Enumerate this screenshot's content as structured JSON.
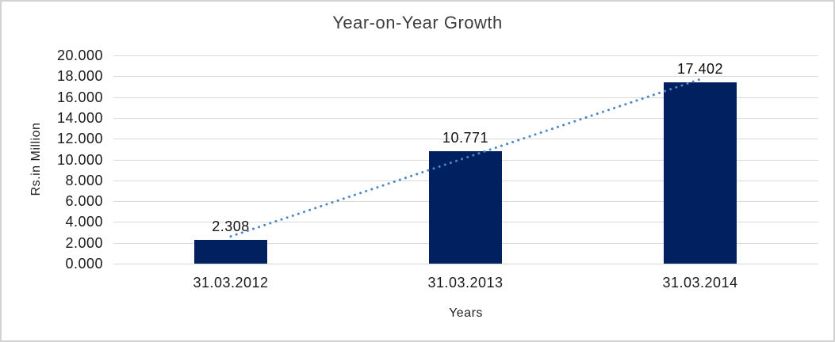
{
  "chart_data": {
    "type": "bar",
    "title": "Year-on-Year Growth",
    "xlabel": "Years",
    "ylabel": "Rs.in Million",
    "categories": [
      "31.03.2012",
      "31.03.2013",
      "31.03.2014"
    ],
    "values": [
      2.308,
      10.771,
      17.402
    ],
    "value_labels": [
      "2.308",
      "10.771",
      "17.402"
    ],
    "y_ticks": [
      "20.000",
      "18.000",
      "16.000",
      "14.000",
      "12.000",
      "10.000",
      "8.000",
      "6.000",
      "4.000",
      "2.000",
      "0.000"
    ],
    "ylim": [
      0,
      20
    ],
    "grid": "horizontal",
    "legend": "none",
    "bar_color": "#002060",
    "gridline_color": "#d9d9d9",
    "trendline": {
      "type": "linear",
      "style": "dotted",
      "color": "#4a86c8"
    }
  }
}
